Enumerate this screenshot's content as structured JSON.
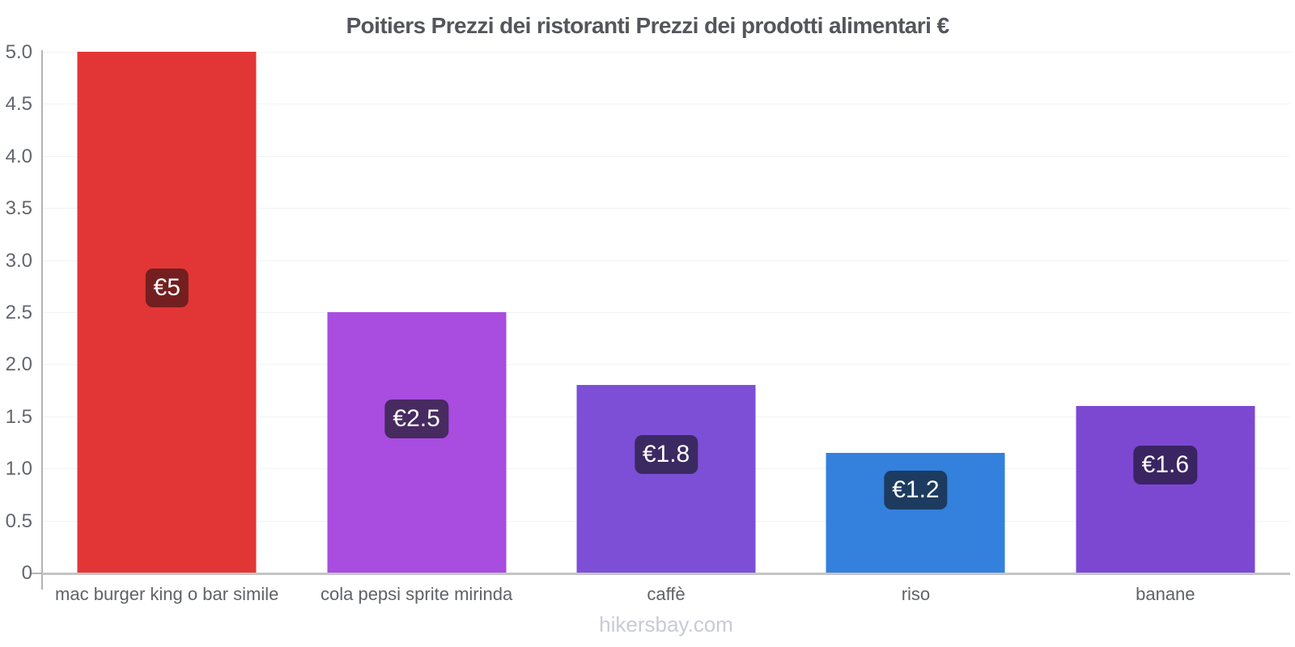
{
  "title": "Poitiers Prezzi dei ristoranti Prezzi dei prodotti alimentari €",
  "footer": "hikersbay.com",
  "chart_data": {
    "type": "bar",
    "title": "Poitiers Prezzi dei ristoranti Prezzi dei prodotti alimentari €",
    "currency": "€",
    "categories": [
      "mac burger king o bar simile",
      "cola pepsi sprite mirinda",
      "caffè",
      "riso",
      "banane"
    ],
    "values": [
      5,
      2.5,
      1.8,
      1.15,
      1.6
    ],
    "value_labels": [
      "€5",
      "€2.5",
      "€1.8",
      "€1.2",
      "€1.6"
    ],
    "bar_colors": [
      "#e23636",
      "#a94ce0",
      "#7d4fd6",
      "#3380dd",
      "#7c48d2"
    ],
    "label_chip_colors": [
      "#731f1f",
      "#472a60",
      "#3b2a62",
      "#1d3b5f",
      "#3a2462"
    ],
    "xlabel": "",
    "ylabel": "",
    "ylim": [
      0,
      5
    ],
    "yticks": [
      0,
      0.5,
      1.0,
      1.5,
      2.0,
      2.5,
      3.0,
      3.5,
      4.0,
      4.5,
      5.0
    ],
    "ytick_labels": [
      "0",
      "0.5",
      "1.0",
      "1.5",
      "2.0",
      "2.5",
      "3.0",
      "3.5",
      "4.0",
      "4.5",
      "5.0"
    ],
    "grid": "horizontal",
    "legend": false,
    "axis_color": "#b3b3b3",
    "baseline_color": "#c4c4c4",
    "gridline_color": "#f3f3f3",
    "title_color": "#54565b",
    "tick_label_color": "#63666b",
    "category_label_color": "#5f6368",
    "footer_color": "#c9cbd4"
  }
}
